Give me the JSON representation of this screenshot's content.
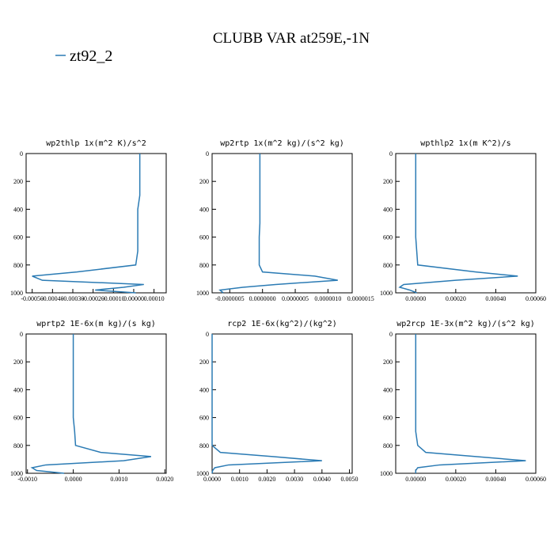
{
  "title": "CLUBB VAR at259E,-1N",
  "chart_data": [
    {
      "type": "line",
      "title": "wp2thlp  1x(m^2 K)/s^2",
      "y": [
        0,
        100,
        200,
        300,
        400,
        500,
        600,
        700,
        800,
        850,
        880,
        910,
        940,
        960,
        980,
        1000
      ],
      "series": [
        {
          "name": "zt92_2",
          "color": "#2b7bb4",
          "values": [
            3e-05,
            3e-05,
            3e-05,
            3e-05,
            2e-05,
            2e-05,
            2e-05,
            2e-05,
            1e-05,
            -0.00028,
            -0.0005,
            -0.00045,
            5e-05,
            -5e-05,
            -0.00019,
            1e-05
          ]
        }
      ],
      "xlim": [
        -0.00053,
        0.00016
      ],
      "ylim": [
        0,
        1000
      ],
      "y_inverted": true,
      "xticks": [
        {
          "value": -0.0005,
          "label": "-0.00050"
        },
        {
          "value": -0.0004,
          "label": "-0.00040"
        },
        {
          "value": -0.0003,
          "label": "-0.00030"
        },
        {
          "value": -0.0002,
          "label": "-0.00020"
        },
        {
          "value": -0.0001,
          "label": "-0.00010"
        },
        {
          "value": 0,
          "label": "0.00000"
        },
        {
          "value": 0.0001,
          "label": "0.00010"
        }
      ],
      "yticks": [
        0,
        200,
        400,
        600,
        800,
        1000
      ]
    },
    {
      "type": "line",
      "title": "wp2rtp  1x(m^2 kg)/(s^2 kg)",
      "y": [
        0,
        100,
        200,
        300,
        400,
        500,
        600,
        700,
        800,
        850,
        880,
        910,
        940,
        960,
        980,
        1000
      ],
      "series": [
        {
          "name": "zt92_2",
          "color": "#2b7bb4",
          "values": [
            -4e-08,
            -4e-08,
            -4e-08,
            -4e-08,
            -4e-08,
            -4e-08,
            -5e-08,
            -5e-08,
            -5e-08,
            0,
            8e-07,
            1.15e-06,
            2e-07,
            -3e-07,
            -6.5e-07,
            -6e-07
          ]
        }
      ],
      "xlim": [
        -7.7e-07,
        1.37e-06
      ],
      "ylim": [
        0,
        1000
      ],
      "y_inverted": true,
      "xticks": [
        {
          "value": -5e-07,
          "label": "-0.0000005"
        },
        {
          "value": 0,
          "label": "0.0000000"
        },
        {
          "value": 5e-07,
          "label": "0.0000005"
        },
        {
          "value": 1e-06,
          "label": "0.0000010"
        },
        {
          "value": 1.5e-06,
          "label": "0.0000015"
        }
      ],
      "yticks": [
        0,
        200,
        400,
        600,
        800,
        1000
      ]
    },
    {
      "type": "line",
      "title": "wpthlp2  1x(m K^2)/s",
      "y": [
        0,
        100,
        200,
        300,
        400,
        500,
        600,
        700,
        800,
        850,
        880,
        910,
        940,
        960,
        980,
        1000
      ],
      "series": [
        {
          "name": "zt92_2",
          "color": "#2b7bb4",
          "values": [
            0,
            0,
            0,
            0,
            0,
            0,
            0,
            5e-06,
            1e-05,
            0.0003,
            0.00051,
            0.0002,
            -6e-05,
            -8e-05,
            -3e-05,
            5e-06
          ]
        }
      ],
      "xlim": [
        -0.0001,
        0.0006
      ],
      "ylim": [
        0,
        1000
      ],
      "y_inverted": true,
      "xticks": [
        {
          "value": 0,
          "label": "0.00000"
        },
        {
          "value": 0.0002,
          "label": "0.00020"
        },
        {
          "value": 0.0004,
          "label": "0.00040"
        },
        {
          "value": 0.0006,
          "label": "0.00060"
        }
      ],
      "yticks": [
        0,
        200,
        400,
        600,
        800,
        1000
      ]
    },
    {
      "type": "line",
      "title": "wprtp2  1E-6x(m kg)/(s kg)",
      "y": [
        0,
        100,
        200,
        300,
        400,
        500,
        600,
        700,
        800,
        850,
        880,
        910,
        940,
        960,
        980,
        1000
      ],
      "series": [
        {
          "name": "zt92_2",
          "color": "#2b7bb4",
          "values": [
            0,
            0,
            0,
            0,
            0,
            0,
            0,
            3e-05,
            5e-05,
            0.0006,
            0.0017,
            0.0011,
            -0.0006,
            -0.0009,
            -0.0008,
            -0.0002
          ]
        }
      ],
      "xlim": [
        -0.00103,
        0.00203
      ],
      "ylim": [
        0,
        1000
      ],
      "y_inverted": true,
      "xticks": [
        {
          "value": -0.001,
          "label": "-0.0010"
        },
        {
          "value": 0,
          "label": "0.0000"
        },
        {
          "value": 0.001,
          "label": "0.0010"
        },
        {
          "value": 0.002,
          "label": "0.0020"
        }
      ],
      "yticks": [
        0,
        200,
        400,
        600,
        800,
        1000
      ]
    },
    {
      "type": "line",
      "title": "rcp2  1E-6x(kg^2)/(kg^2)",
      "y": [
        0,
        100,
        200,
        300,
        400,
        500,
        600,
        700,
        800,
        850,
        880,
        910,
        940,
        960,
        980,
        1000
      ],
      "series": [
        {
          "name": "zt92_2",
          "color": "#2b7bb4",
          "values": [
            0,
            0,
            0,
            0,
            0,
            0,
            0,
            0,
            0,
            0.0003,
            0.0022,
            0.004,
            0.0006,
            0.0001,
            2e-05,
            0
          ]
        }
      ],
      "xlim": [
        0,
        0.0051
      ],
      "ylim": [
        0,
        1000
      ],
      "y_inverted": true,
      "xticks": [
        {
          "value": 0,
          "label": "0.0000"
        },
        {
          "value": 0.001,
          "label": "0.0010"
        },
        {
          "value": 0.002,
          "label": "0.0020"
        },
        {
          "value": 0.003,
          "label": "0.0030"
        },
        {
          "value": 0.004,
          "label": "0.0040"
        },
        {
          "value": 0.005,
          "label": "0.0050"
        }
      ],
      "yticks": [
        0,
        200,
        400,
        600,
        800,
        1000
      ]
    },
    {
      "type": "line",
      "title": "wp2rcp  1E-3x(m^2 kg)/(s^2 kg)",
      "y": [
        0,
        100,
        200,
        300,
        400,
        500,
        600,
        700,
        800,
        850,
        880,
        910,
        940,
        960,
        980,
        1000
      ],
      "series": [
        {
          "name": "zt92_2",
          "color": "#2b7bb4",
          "values": [
            0,
            0,
            0,
            0,
            0,
            0,
            0,
            0,
            1e-05,
            5e-05,
            0.0003,
            0.00055,
            0.00012,
            1e-05,
            0,
            0
          ]
        }
      ],
      "xlim": [
        -0.0001,
        0.0006
      ],
      "ylim": [
        0,
        1000
      ],
      "y_inverted": true,
      "xticks": [
        {
          "value": 0,
          "label": "0.00000"
        },
        {
          "value": 0.0002,
          "label": "0.00020"
        },
        {
          "value": 0.0004,
          "label": "0.00040"
        },
        {
          "value": 0.0006,
          "label": "0.00060"
        }
      ],
      "yticks": [
        0,
        200,
        400,
        600,
        800,
        1000
      ]
    }
  ]
}
